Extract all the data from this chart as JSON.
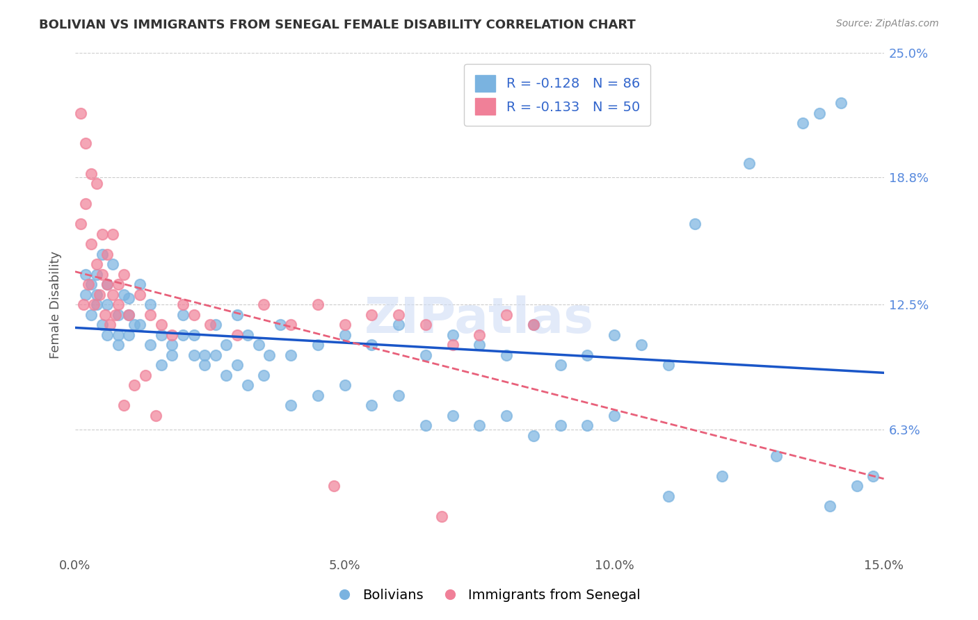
{
  "title": "BOLIVIAN VS IMMIGRANTS FROM SENEGAL FEMALE DISABILITY CORRELATION CHART",
  "source": "Source: ZipAtlas.com",
  "xlabel_ticks": [
    "0.0%",
    "15.0%"
  ],
  "ylabel_ticks_right": [
    "25.0%",
    "18.8%",
    "12.5%",
    "6.3%"
  ],
  "ylabel_label": "Female Disability",
  "xlim": [
    0.0,
    15.0
  ],
  "ylim": [
    0.0,
    25.0
  ],
  "ytick_vals": [
    6.3,
    12.5,
    18.8,
    25.0
  ],
  "xtick_vals": [
    0.0,
    5.0,
    10.0,
    15.0
  ],
  "legend_entries": [
    {
      "label": "R = -0.128   N = 86",
      "color": "#a8c8f0"
    },
    {
      "label": "R = -0.133   N = 50",
      "color": "#f0a8b8"
    }
  ],
  "bolivians_label": "Bolivians",
  "senegal_label": "Immigrants from Senegal",
  "blue_color": "#7ab3e0",
  "pink_color": "#f08098",
  "blue_line_color": "#1a56c8",
  "pink_line_color": "#e8607a",
  "watermark": "ZIPatlas",
  "blue_R": -0.128,
  "blue_N": 86,
  "pink_R": -0.133,
  "pink_N": 50,
  "blue_x": [
    0.3,
    0.5,
    0.6,
    0.4,
    0.8,
    1.0,
    0.2,
    0.3,
    0.5,
    0.7,
    0.9,
    1.1,
    0.4,
    0.6,
    0.8,
    1.0,
    1.2,
    1.4,
    1.6,
    1.8,
    2.0,
    2.2,
    2.4,
    2.6,
    2.8,
    3.0,
    3.2,
    3.4,
    3.6,
    3.8,
    4.0,
    4.5,
    5.0,
    5.5,
    6.0,
    6.5,
    7.0,
    7.5,
    8.0,
    8.5,
    9.0,
    9.5,
    10.0,
    10.5,
    11.0,
    0.2,
    0.4,
    0.6,
    0.8,
    1.0,
    1.2,
    1.4,
    1.6,
    1.8,
    2.0,
    2.2,
    2.4,
    2.6,
    2.8,
    3.0,
    3.2,
    3.5,
    4.0,
    4.5,
    5.0,
    5.5,
    6.0,
    6.5,
    7.0,
    7.5,
    8.0,
    8.5,
    9.0,
    9.5,
    10.0,
    11.0,
    12.0,
    13.0,
    14.0,
    14.5,
    14.8,
    13.5,
    11.5,
    12.5,
    13.8,
    14.2
  ],
  "blue_y": [
    12.0,
    11.5,
    12.5,
    13.0,
    11.0,
    12.8,
    14.0,
    13.5,
    15.0,
    14.5,
    13.0,
    11.5,
    14.0,
    13.5,
    12.0,
    11.0,
    13.5,
    12.5,
    11.0,
    10.5,
    12.0,
    11.0,
    10.0,
    11.5,
    10.5,
    12.0,
    11.0,
    10.5,
    10.0,
    11.5,
    10.0,
    10.5,
    11.0,
    10.5,
    11.5,
    10.0,
    11.0,
    10.5,
    10.0,
    11.5,
    9.5,
    10.0,
    11.0,
    10.5,
    9.5,
    13.0,
    12.5,
    11.0,
    10.5,
    12.0,
    11.5,
    10.5,
    9.5,
    10.0,
    11.0,
    10.0,
    9.5,
    10.0,
    9.0,
    9.5,
    8.5,
    9.0,
    7.5,
    8.0,
    8.5,
    7.5,
    8.0,
    6.5,
    7.0,
    6.5,
    7.0,
    6.0,
    6.5,
    6.5,
    7.0,
    3.0,
    4.0,
    5.0,
    2.5,
    3.5,
    4.0,
    21.5,
    16.5,
    19.5,
    22.0,
    22.5
  ],
  "pink_x": [
    0.1,
    0.2,
    0.3,
    0.1,
    0.2,
    0.4,
    0.5,
    0.3,
    0.4,
    0.6,
    0.7,
    0.5,
    0.6,
    0.8,
    0.9,
    0.7,
    0.8,
    1.0,
    1.2,
    1.4,
    1.6,
    1.8,
    2.0,
    2.2,
    2.5,
    3.0,
    3.5,
    4.0,
    4.5,
    5.0,
    5.5,
    6.0,
    6.5,
    7.0,
    7.5,
    8.0,
    8.5,
    0.15,
    0.25,
    0.35,
    0.45,
    0.55,
    0.65,
    0.75,
    0.9,
    1.1,
    1.3,
    1.5,
    4.8,
    6.8
  ],
  "pink_y": [
    22.0,
    20.5,
    19.0,
    16.5,
    17.5,
    18.5,
    16.0,
    15.5,
    14.5,
    15.0,
    16.0,
    14.0,
    13.5,
    13.5,
    14.0,
    13.0,
    12.5,
    12.0,
    13.0,
    12.0,
    11.5,
    11.0,
    12.5,
    12.0,
    11.5,
    11.0,
    12.5,
    11.5,
    12.5,
    11.5,
    12.0,
    12.0,
    11.5,
    10.5,
    11.0,
    12.0,
    11.5,
    12.5,
    13.5,
    12.5,
    13.0,
    12.0,
    11.5,
    12.0,
    7.5,
    8.5,
    9.0,
    7.0,
    3.5,
    2.0
  ]
}
